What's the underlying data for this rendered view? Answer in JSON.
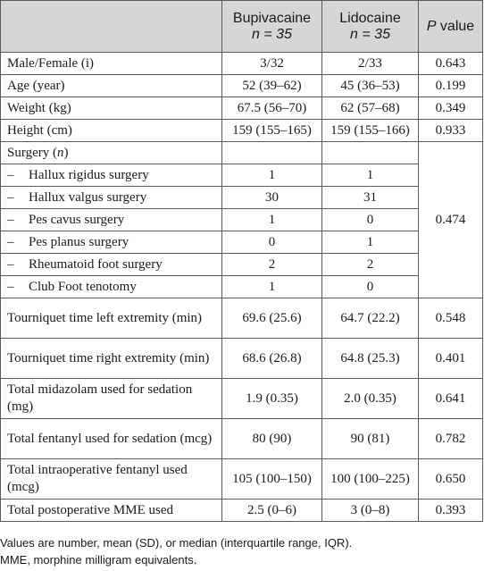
{
  "header": {
    "col1": "Bupivacaine",
    "col1_n": "n = 35",
    "col2": "Lidocaine",
    "col2_n": "n = 35",
    "col3_italic": "P",
    "col3_rest": " value"
  },
  "rows": [
    {
      "label": "Male/Female (i)",
      "bup": "3/32",
      "lid": "2/33",
      "p": "0.643"
    },
    {
      "label": "Age (year)",
      "bup": "52 (39–62)",
      "lid": "45 (36–53)",
      "p": "0.199"
    },
    {
      "label": "Weight (kg)",
      "bup": "67.5 (56–70)",
      "lid": "62 (57–68)",
      "p": "0.349"
    },
    {
      "label": "Height (cm)",
      "bup": "159 (155–165)",
      "lid": "159 (155–166)",
      "p": "0.933"
    }
  ],
  "surgery": {
    "label": "Surgery (",
    "label_n": "n",
    "label_close": ")",
    "p": "0.474",
    "dash": "–",
    "items": [
      {
        "label": "Hallux rigidus surgery",
        "bup": "1",
        "lid": "1"
      },
      {
        "label": "Hallux valgus surgery",
        "bup": "30",
        "lid": "31"
      },
      {
        "label": "Pes cavus surgery",
        "bup": "1",
        "lid": "0"
      },
      {
        "label": "Pes planus surgery",
        "bup": "0",
        "lid": "1"
      },
      {
        "label": "Rheumatoid foot surgery",
        "bup": "2",
        "lid": "2"
      },
      {
        "label": "Club Foot tenotomy",
        "bup": "1",
        "lid": "0"
      }
    ]
  },
  "rows2": [
    {
      "label": "Tourniquet time left extremity (min)",
      "bup": "69.6 (25.6)",
      "lid": "64.7 (22.2)",
      "p": "0.548"
    },
    {
      "label": "Tourniquet time right extremity (min)",
      "bup": "68.6 (26.8)",
      "lid": "64.8 (25.3)",
      "p": "0.401"
    },
    {
      "label": "Total midazolam used for sedation (mg)",
      "bup": "1.9 (0.35)",
      "lid": "2.0 (0.35)",
      "p": "0.641"
    },
    {
      "label": "Total fentanyl used for sedation (mcg)",
      "bup": "80 (90)",
      "lid": "90 (81)",
      "p": "0.782"
    },
    {
      "label": "Total intraoperative fentanyl used (mcg)",
      "bup": "105 (100–150)",
      "lid": "100 (100–225)",
      "p": "0.650"
    }
  ],
  "last_row": {
    "label": "Total postoperative MME used",
    "bup": "2.5 (0–6)",
    "lid": "3 (0–8)",
    "p": "0.393"
  },
  "footnotes": [
    "Values are number, mean (SD), or median (interquartile range, IQR).",
    "MME, morphine milligram equivalents."
  ]
}
